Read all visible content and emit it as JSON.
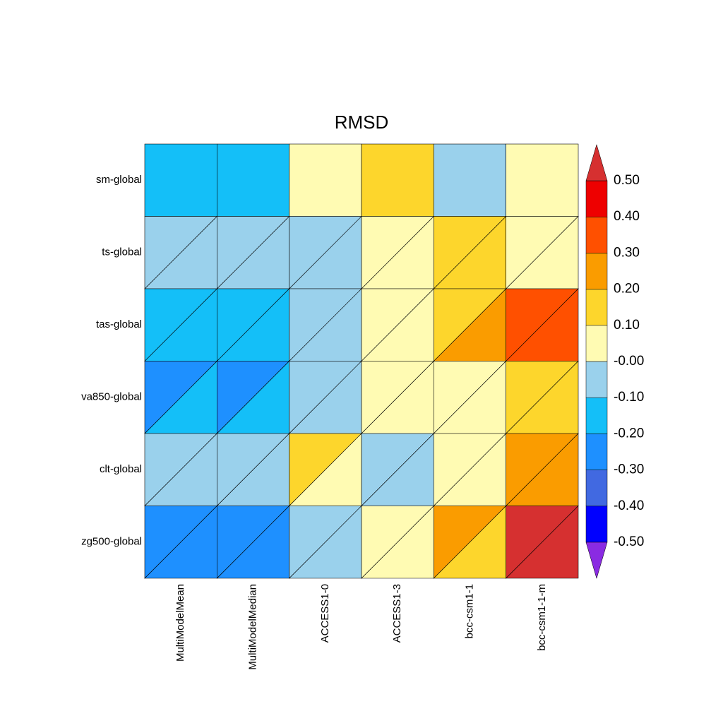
{
  "chart_data": {
    "type": "heatmap",
    "title": "RMSD",
    "rows": [
      "sm-global",
      "ts-global",
      "tas-global",
      "va850-global",
      "clt-global",
      "zg500-global"
    ],
    "columns": [
      "MultiModelMean",
      "MultiModelMedian",
      "ACCESS1-0",
      "ACCESS1-3",
      "bcc-csm1-1",
      "bcc-csm1-1-m"
    ],
    "values": [
      [
        -0.15,
        -0.15,
        0.05,
        0.15,
        -0.05,
        0.05
      ],
      [
        -0.05,
        -0.05,
        -0.05,
        0.05,
        0.15,
        0.05
      ],
      [
        -0.15,
        -0.15,
        -0.05,
        0.05,
        0.15,
        0.35
      ],
      [
        -0.25,
        -0.25,
        -0.05,
        0.05,
        0.05,
        0.15
      ],
      [
        -0.05,
        -0.05,
        0.15,
        -0.05,
        0.05,
        0.25
      ],
      [
        -0.25,
        -0.25,
        -0.05,
        0.05,
        0.25,
        0.55
      ]
    ],
    "values_lower": [
      [
        null,
        null,
        null,
        null,
        null,
        null
      ],
      [
        -0.05,
        -0.05,
        -0.05,
        0.05,
        0.15,
        0.05
      ],
      [
        -0.15,
        -0.15,
        -0.05,
        0.05,
        0.25,
        0.35
      ],
      [
        -0.15,
        -0.15,
        -0.05,
        0.05,
        0.05,
        0.15
      ],
      [
        -0.05,
        -0.05,
        0.05,
        -0.05,
        0.05,
        0.25
      ],
      [
        -0.25,
        -0.25,
        -0.05,
        0.05,
        0.15,
        0.55
      ]
    ],
    "ylim": [
      -0.5,
      0.5
    ],
    "yticks": [
      {
        "value": -0.5,
        "label": "-0.50"
      },
      {
        "value": -0.4,
        "label": "-0.40"
      },
      {
        "value": -0.3,
        "label": "-0.30"
      },
      {
        "value": -0.2,
        "label": "-0.20"
      },
      {
        "value": -0.1,
        "label": "-0.10"
      },
      {
        "value": 0,
        "label": "-0.00"
      },
      {
        "value": 0.1,
        "label": "0.10"
      },
      {
        "value": 0.2,
        "label": "0.20"
      },
      {
        "value": 0.3,
        "label": "0.30"
      },
      {
        "value": 0.4,
        "label": "0.40"
      },
      {
        "value": 0.5,
        "label": "0.50"
      }
    ],
    "colors": [
      "#8a2be2",
      "#0000ff",
      "#4169e1",
      "#1e90ff",
      "#14bff8",
      "#9ad1ec",
      "#fffbb3",
      "#fdd62c",
      "#fa9c00",
      "#ff5000",
      "#ee0000",
      "#d63030"
    ]
  }
}
